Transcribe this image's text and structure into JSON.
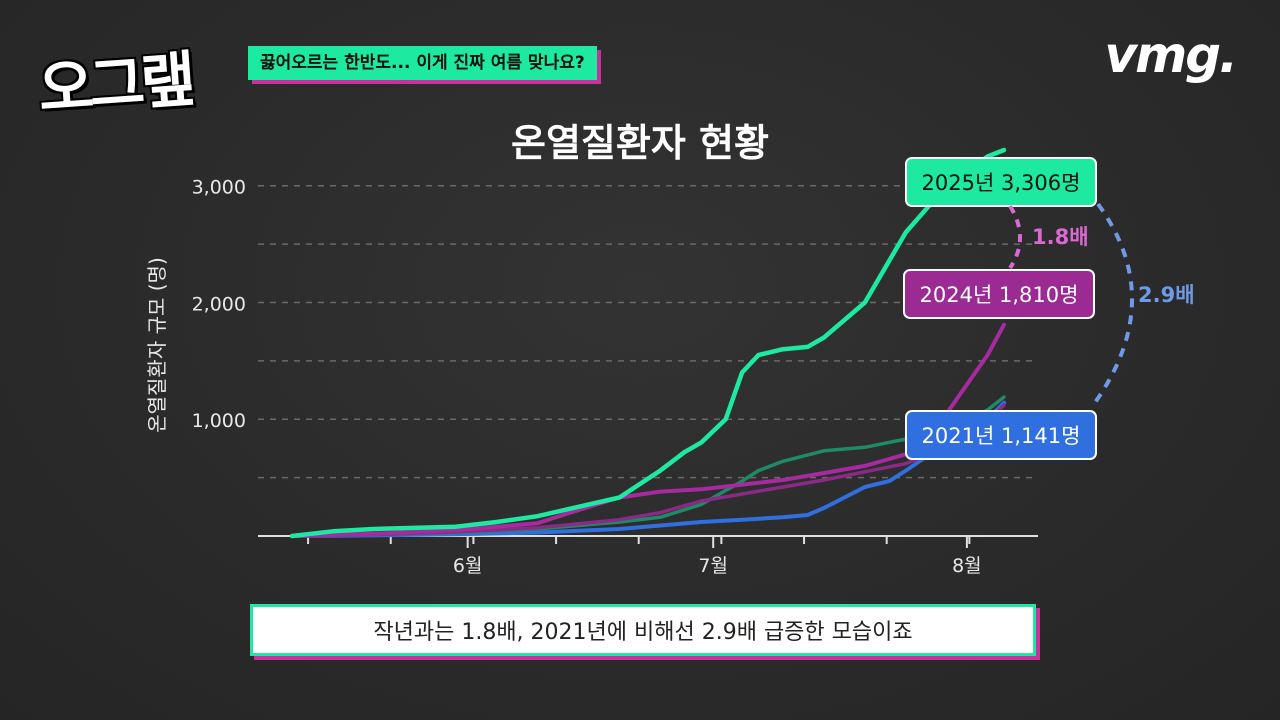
{
  "header": {
    "logo_text": "오그랲",
    "headline": "끓어오르는 한반도... 이게 진짜 여름 맞나요?",
    "brand": "vmg."
  },
  "caption": "작년과는 1.8배, 2021년에 비해선 2.9배 급증한 모습이죠",
  "chart_data": {
    "type": "line",
    "title": "온열질환자 현황",
    "ylabel": "온열질환자 규모 (명)",
    "xlabel": "",
    "ylim": [
      0,
      3306
    ],
    "y_ticks": [
      {
        "value": 1000,
        "label": "1,000"
      },
      {
        "value": 2000,
        "label": "2,000"
      },
      {
        "value": 3000,
        "label": "3,000"
      }
    ],
    "x_ticks": [
      {
        "day": 20,
        "label": "6월"
      },
      {
        "day": 50,
        "label": "7월"
      },
      {
        "day": 81,
        "label": "8월"
      }
    ],
    "grid": true,
    "series": [
      {
        "name": "2021",
        "color": "#2f6fe0",
        "x": [
          0,
          10,
          20,
          30,
          40,
          45,
          50,
          55,
          60,
          63,
          65,
          70,
          73,
          75,
          80,
          85,
          87
        ],
        "y": [
          0,
          5,
          15,
          30,
          60,
          90,
          120,
          140,
          160,
          180,
          240,
          420,
          470,
          560,
          800,
          1000,
          1141
        ]
      },
      {
        "name": "2022",
        "color": "#1f8a66",
        "x": [
          0,
          10,
          20,
          30,
          40,
          45,
          50,
          55,
          57,
          60,
          65,
          70,
          75,
          80,
          85,
          87
        ],
        "y": [
          0,
          10,
          30,
          60,
          120,
          160,
          270,
          470,
          560,
          640,
          730,
          760,
          830,
          880,
          1080,
          1190
        ]
      },
      {
        "name": "2023",
        "color": "#8a2a86",
        "x": [
          0,
          10,
          20,
          30,
          40,
          45,
          50,
          55,
          60,
          65,
          70,
          75,
          80,
          85,
          87
        ],
        "y": [
          0,
          12,
          35,
          70,
          140,
          200,
          300,
          360,
          420,
          480,
          550,
          620,
          760,
          980,
          1120
        ]
      },
      {
        "name": "2024",
        "color": "#a62aa0",
        "x": [
          0,
          10,
          20,
          30,
          34,
          40,
          45,
          50,
          55,
          60,
          65,
          70,
          75,
          80,
          85,
          87
        ],
        "y": [
          0,
          20,
          50,
          110,
          200,
          330,
          380,
          400,
          440,
          480,
          540,
          600,
          700,
          1050,
          1550,
          1810
        ]
      },
      {
        "name": "2025",
        "color": "#1de9a0",
        "x": [
          0,
          5,
          10,
          20,
          25,
          30,
          35,
          40,
          45,
          48,
          50,
          53,
          55,
          57,
          60,
          63,
          65,
          70,
          75,
          80,
          85,
          87
        ],
        "y": [
          0,
          40,
          60,
          80,
          120,
          170,
          250,
          330,
          560,
          720,
          800,
          1000,
          1400,
          1550,
          1600,
          1620,
          1700,
          2000,
          2600,
          3000,
          3250,
          3306
        ]
      }
    ],
    "labels": [
      {
        "series": "2025",
        "text": "2025년 3,306명",
        "fill": "#1de9a0",
        "text_color": "#111"
      },
      {
        "series": "2024",
        "text": "2024년 1,810명",
        "fill": "#9b2a93",
        "text_color": "#fff"
      },
      {
        "series": "2021",
        "text": "2021년 1,141명",
        "fill": "#2f6fe0",
        "text_color": "#fff"
      }
    ],
    "ratios": [
      {
        "text": "1.8배",
        "color": "#d86ad2"
      },
      {
        "text": "2.9배",
        "color": "#6f9ae8"
      }
    ]
  }
}
